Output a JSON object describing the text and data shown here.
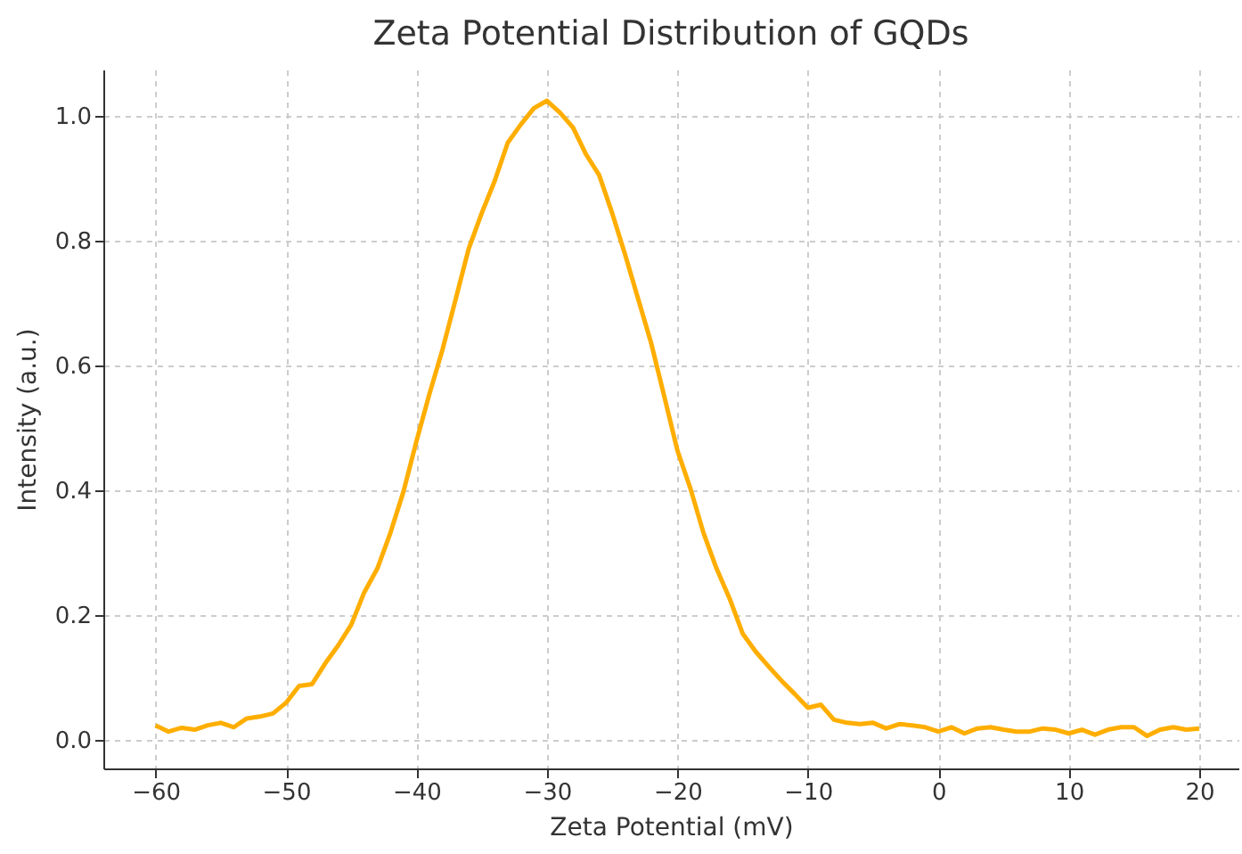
{
  "chart_data": {
    "type": "line",
    "title": "Zeta Potential Distribution of GQDs",
    "xlabel": "Zeta Potential (mV)",
    "ylabel": "Intensity (a.u.)",
    "x": [
      -60,
      -59,
      -58,
      -57,
      -56,
      -55,
      -54,
      -53,
      -52,
      -51,
      -50,
      -49,
      -48,
      -47,
      -46,
      -45,
      -44,
      -43,
      -42,
      -41,
      -40,
      -39,
      -38,
      -37,
      -36,
      -35,
      -34,
      -33,
      -32,
      -31,
      -30,
      -29,
      -28,
      -27,
      -26,
      -25,
      -24,
      -23,
      -22,
      -21,
      -20,
      -19,
      -18,
      -17,
      -16,
      -15,
      -14,
      -13,
      -12,
      -11,
      -10,
      -9,
      -8,
      -7,
      -6,
      -5,
      -4,
      -3,
      -2,
      -1,
      0,
      1,
      2,
      3,
      4,
      5,
      6,
      7,
      8,
      9,
      10,
      11,
      12,
      13,
      14,
      15,
      16,
      17,
      18,
      19,
      20
    ],
    "series": [
      {
        "color": "#ffae00",
        "values": [
          0.024,
          0.014,
          0.02,
          0.017,
          0.024,
          0.028,
          0.021,
          0.035,
          0.038,
          0.043,
          0.06,
          0.087,
          0.09,
          0.123,
          0.152,
          0.185,
          0.237,
          0.275,
          0.332,
          0.398,
          0.479,
          0.555,
          0.626,
          0.706,
          0.787,
          0.844,
          0.896,
          0.957,
          0.986,
          1.012,
          1.024,
          1.005,
          0.981,
          0.938,
          0.905,
          0.844,
          0.777,
          0.706,
          0.635,
          0.55,
          0.464,
          0.403,
          0.332,
          0.275,
          0.227,
          0.171,
          0.142,
          0.118,
          0.095,
          0.074,
          0.052,
          0.057,
          0.033,
          0.028,
          0.026,
          0.028,
          0.019,
          0.026,
          0.024,
          0.021,
          0.014,
          0.021,
          0.011,
          0.019,
          0.021,
          0.017,
          0.014,
          0.014,
          0.019,
          0.017,
          0.011,
          0.017,
          0.009,
          0.017,
          0.021,
          0.021,
          0.007,
          0.017,
          0.021,
          0.017,
          0.019
        ]
      }
    ],
    "xlim": [
      -64,
      23
    ],
    "ylim": [
      -0.045,
      1.074
    ],
    "xticks": [
      -60,
      -50,
      -40,
      -30,
      -20,
      -10,
      0,
      10,
      20
    ],
    "yticks": [
      {
        "value": 0,
        "label": "0.0"
      },
      {
        "value": 0.2,
        "label": "0.2"
      },
      {
        "value": 0.4,
        "label": "0.4"
      },
      {
        "value": 0.6,
        "label": "0.6"
      },
      {
        "value": 0.8,
        "label": "0.8"
      },
      {
        "value": 1.0,
        "label": "1.0"
      }
    ],
    "grid": true,
    "line_style": "solid",
    "marker": "none"
  }
}
